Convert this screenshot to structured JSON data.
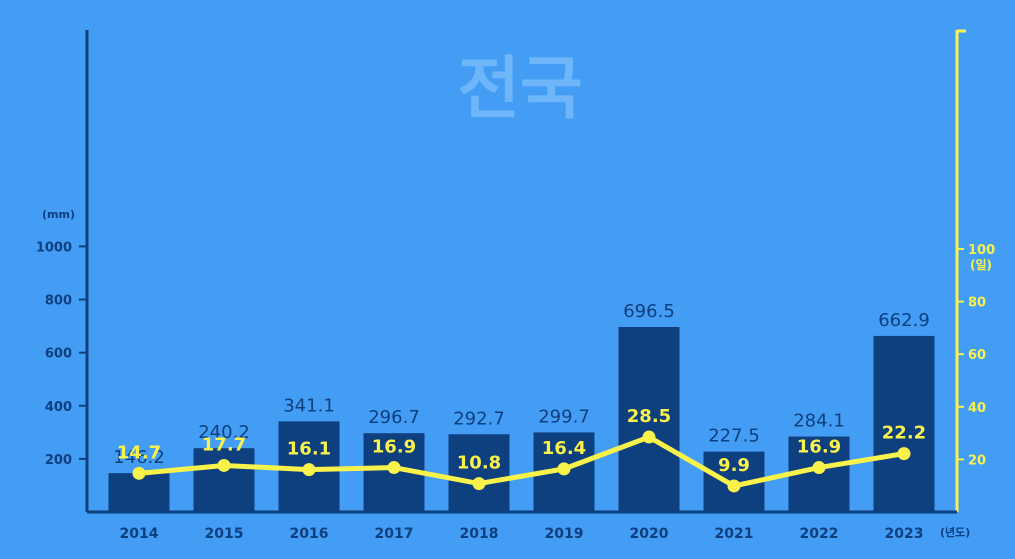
{
  "title": "전국",
  "units": {
    "left": "(mm)",
    "right": "(일)",
    "x": "(년도)"
  },
  "colors": {
    "background": "#449DF5",
    "bars": "#0E3F7E",
    "line": "#F8F24A",
    "watermark": "#6FB5F9"
  },
  "chart_data": {
    "type": "bar",
    "title": "전국",
    "xlabel": "(년도)",
    "categories": [
      "2014",
      "2015",
      "2016",
      "2017",
      "2018",
      "2019",
      "2020",
      "2021",
      "2022",
      "2023"
    ],
    "series": [
      {
        "axis": "left",
        "type": "bar",
        "values": [
          146.2,
          240.2,
          341.1,
          296.7,
          292.7,
          299.7,
          696.5,
          227.5,
          284.1,
          662.9
        ],
        "labels": [
          "146.2",
          "240.2",
          "341.1",
          "296.7",
          "292.7",
          "299.7",
          "696.5",
          "227.5",
          "284.1",
          "662.9"
        ]
      },
      {
        "axis": "right",
        "type": "line",
        "values": [
          14.7,
          17.7,
          16.1,
          16.9,
          10.8,
          16.4,
          28.5,
          9.9,
          16.9,
          22.2
        ],
        "labels": [
          "14.7",
          "17.7",
          "16.1",
          "16.9",
          "10.8",
          "16.4",
          "28.5",
          "9.9",
          "16.9",
          "22.2"
        ]
      }
    ],
    "y_left": {
      "label": "(mm)",
      "ticks": [
        "200",
        "400",
        "600",
        "800",
        "1000"
      ],
      "tick_values": [
        200,
        400,
        600,
        800,
        1000
      ],
      "lim": [
        0,
        1000
      ]
    },
    "y_right": {
      "label": "(일)",
      "ticks": [
        "20",
        "40",
        "60",
        "80",
        "100"
      ],
      "tick_values": [
        20,
        40,
        60,
        80,
        100
      ],
      "lim": [
        0,
        100
      ]
    },
    "grid": false
  }
}
